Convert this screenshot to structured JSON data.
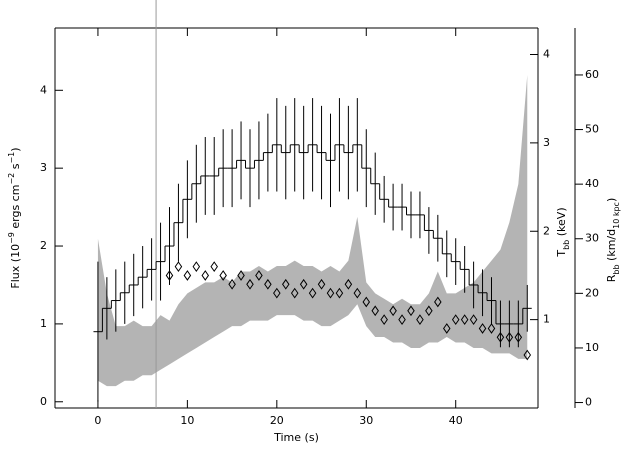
{
  "chart_data": {
    "type": "flux-temperature-radius",
    "xlabel": "Time (s)",
    "ylabel": [
      {
        "t": "Flux (10"
      },
      {
        "t": "−9",
        "sup": true
      },
      {
        "t": " ergs cm"
      },
      {
        "t": "−2",
        "sup": true
      },
      {
        "t": " s"
      },
      {
        "t": "−1",
        "sup": true
      },
      {
        "t": ")"
      }
    ],
    "y2label": [
      {
        "t": "T"
      },
      {
        "t": "bb",
        "sub": true
      },
      {
        "t": " (keV)"
      }
    ],
    "y3label": [
      {
        "t": "R"
      },
      {
        "t": "bb",
        "sub": true
      },
      {
        "t": " (km/d"
      },
      {
        "t": "10 kpc",
        "sub": true
      },
      {
        "t": ")"
      }
    ],
    "xlim": [
      -4.8,
      49.2
    ],
    "xticks": [
      0,
      10,
      20,
      30,
      40
    ],
    "ylim": [
      -0.08,
      4.8
    ],
    "yticks": [
      0,
      1,
      2,
      3,
      4
    ],
    "y2lim": [
      0,
      4.3
    ],
    "y2ticks": [
      1,
      2,
      3,
      4
    ],
    "y3lim": [
      -1,
      68.6
    ],
    "y3ticks": [
      0,
      10,
      20,
      30,
      40,
      50,
      60
    ],
    "marker_x": 6.5,
    "x": [
      0,
      1,
      2,
      3,
      4,
      5,
      6,
      7,
      8,
      9,
      10,
      11,
      12,
      13,
      14,
      15,
      16,
      17,
      18,
      19,
      20,
      21,
      22,
      23,
      24,
      25,
      26,
      27,
      28,
      29,
      30,
      31,
      32,
      33,
      34,
      35,
      36,
      37,
      38,
      39,
      40,
      41,
      42,
      43,
      44,
      45,
      46,
      47,
      48
    ],
    "flux": {
      "color": "#000000",
      "values": [
        0.9,
        1.2,
        1.3,
        1.4,
        1.5,
        1.6,
        1.7,
        1.8,
        2.0,
        2.3,
        2.6,
        2.8,
        2.9,
        2.9,
        3.0,
        3.0,
        3.1,
        3.0,
        3.1,
        3.2,
        3.3,
        3.2,
        3.3,
        3.2,
        3.3,
        3.2,
        3.1,
        3.3,
        3.2,
        3.3,
        3.0,
        2.8,
        2.6,
        2.5,
        2.5,
        2.4,
        2.4,
        2.2,
        2.1,
        1.9,
        1.8,
        1.7,
        1.5,
        1.4,
        1.3,
        1.0,
        1.0,
        1.0,
        1.2
      ],
      "errors": [
        0.9,
        0.4,
        0.4,
        0.4,
        0.4,
        0.4,
        0.4,
        0.5,
        0.5,
        0.5,
        0.5,
        0.5,
        0.5,
        0.5,
        0.5,
        0.5,
        0.5,
        0.5,
        0.5,
        0.5,
        0.6,
        0.6,
        0.6,
        0.6,
        0.6,
        0.6,
        0.6,
        0.6,
        0.6,
        0.6,
        0.5,
        0.4,
        0.3,
        0.3,
        0.3,
        0.3,
        0.3,
        0.3,
        0.3,
        0.3,
        0.3,
        0.3,
        0.3,
        0.3,
        0.3,
        0.3,
        0.3,
        0.3,
        0.3
      ]
    },
    "temperature": {
      "color": "#000000",
      "values": [
        null,
        null,
        null,
        null,
        null,
        null,
        null,
        null,
        1.5,
        1.6,
        1.5,
        1.6,
        1.5,
        1.6,
        1.5,
        1.4,
        1.5,
        1.4,
        1.5,
        1.4,
        1.3,
        1.4,
        1.3,
        1.4,
        1.3,
        1.4,
        1.3,
        1.3,
        1.4,
        1.3,
        1.2,
        1.1,
        1.0,
        1.1,
        1.0,
        1.1,
        1.0,
        1.1,
        1.2,
        0.9,
        1.0,
        1.0,
        1.0,
        0.9,
        0.9,
        0.8,
        0.8,
        0.8,
        0.6
      ]
    },
    "radius": {
      "color": "#b4b4b4",
      "lower": [
        4,
        3,
        3,
        4,
        4,
        5,
        5,
        6,
        7,
        8,
        9,
        10,
        11,
        12,
        13,
        14,
        14,
        15,
        15,
        15,
        16,
        16,
        16,
        15,
        15,
        14,
        14,
        15,
        16,
        18,
        14,
        12,
        12,
        11,
        11,
        10,
        10,
        11,
        11,
        12,
        11,
        11,
        10,
        10,
        9,
        9,
        9,
        8,
        8
      ],
      "upper": [
        30,
        20,
        14,
        14,
        15,
        14,
        14,
        16,
        15,
        18,
        20,
        21,
        22,
        22,
        23,
        22,
        24,
        24,
        25,
        24,
        25,
        25,
        26,
        25,
        25,
        24,
        25,
        24,
        26,
        34,
        22,
        20,
        19,
        18,
        19,
        18,
        18,
        20,
        24,
        20,
        20,
        21,
        22,
        24,
        26,
        28,
        33,
        40,
        60
      ]
    }
  }
}
